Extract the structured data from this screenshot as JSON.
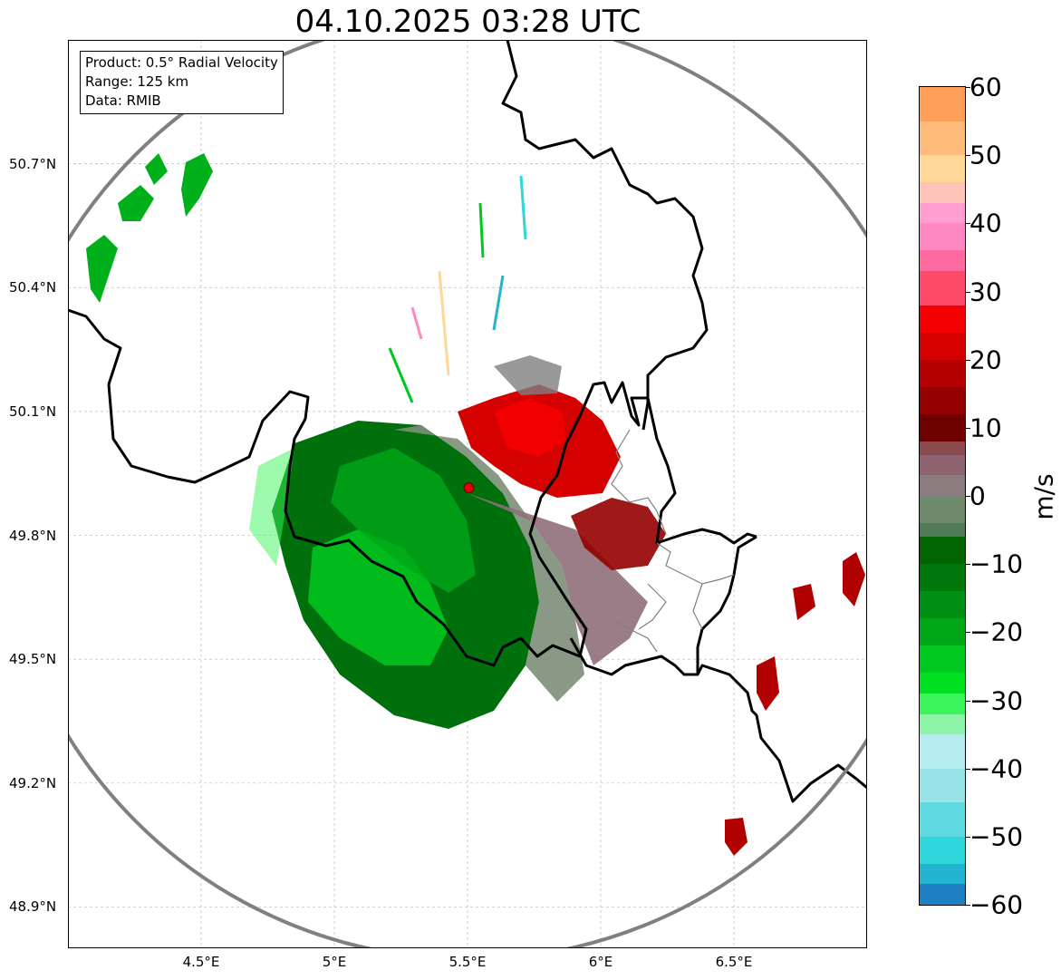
{
  "title": "04.10.2025 03:28 UTC",
  "info_box": {
    "product": "Product: 0.5° Radial Velocity",
    "range": "Range: 125 km",
    "data": "Data: RMIB"
  },
  "map": {
    "lon_min": 4.0,
    "lon_max": 7.0,
    "lat_min": 48.8,
    "lat_max": 51.0,
    "radar_site": {
      "lon": 5.505,
      "lat": 49.915
    },
    "latitude_ticks": [
      {
        "value": 50.7,
        "label": "50.7°N"
      },
      {
        "value": 50.4,
        "label": "50.4°N"
      },
      {
        "value": 50.1,
        "label": "50.1°N"
      },
      {
        "value": 49.8,
        "label": "49.8°N"
      },
      {
        "value": 49.5,
        "label": "49.5°N"
      },
      {
        "value": 49.2,
        "label": "49.2°N"
      },
      {
        "value": 48.9,
        "label": "48.9°N"
      }
    ],
    "longitude_ticks": [
      {
        "value": 4.5,
        "label": "4.5°E"
      },
      {
        "value": 5.0,
        "label": "5°E"
      },
      {
        "value": 5.5,
        "label": "5.5°E"
      },
      {
        "value": 6.0,
        "label": "6°E"
      },
      {
        "value": 6.5,
        "label": "6.5°E"
      }
    ],
    "colors": {
      "range_ring": "#808080",
      "border": "#000000",
      "grid": "#bbbbbb",
      "radar_marker": "#e00000"
    }
  },
  "colorbar": {
    "unit": "m/s",
    "min": -60,
    "max": 60,
    "ticks": [
      {
        "value": 60,
        "label": "60"
      },
      {
        "value": 50,
        "label": "50"
      },
      {
        "value": 40,
        "label": "40"
      },
      {
        "value": 30,
        "label": "30"
      },
      {
        "value": 20,
        "label": "20"
      },
      {
        "value": 10,
        "label": "10"
      },
      {
        "value": 0,
        "label": "0"
      },
      {
        "value": -10,
        "label": "−10"
      },
      {
        "value": -20,
        "label": "−20"
      },
      {
        "value": -30,
        "label": "−30"
      },
      {
        "value": -40,
        "label": "−40"
      },
      {
        "value": -50,
        "label": "−50"
      },
      {
        "value": -60,
        "label": "−60"
      }
    ],
    "segments": [
      {
        "from": 55,
        "to": 60,
        "color": "#ff9f5a"
      },
      {
        "from": 50,
        "to": 55,
        "color": "#ffbb7a"
      },
      {
        "from": 46,
        "to": 50,
        "color": "#ffd796"
      },
      {
        "from": 43,
        "to": 46,
        "color": "#ffc3b8"
      },
      {
        "from": 40,
        "to": 43,
        "color": "#ff9fcf"
      },
      {
        "from": 36,
        "to": 40,
        "color": "#ff88c2"
      },
      {
        "from": 33,
        "to": 36,
        "color": "#ff6aa0"
      },
      {
        "from": 28,
        "to": 33,
        "color": "#ff4b6a"
      },
      {
        "from": 24,
        "to": 28,
        "color": "#f40000"
      },
      {
        "from": 20,
        "to": 24,
        "color": "#d50000"
      },
      {
        "from": 16,
        "to": 20,
        "color": "#b40000"
      },
      {
        "from": 12,
        "to": 16,
        "color": "#950000"
      },
      {
        "from": 8,
        "to": 12,
        "color": "#6f0000"
      },
      {
        "from": 6,
        "to": 8,
        "color": "#8a4a4e"
      },
      {
        "from": 3,
        "to": 6,
        "color": "#8f6470"
      },
      {
        "from": 0,
        "to": 3,
        "color": "#8b7c80"
      },
      {
        "from": -4,
        "to": 0,
        "color": "#6f8a6c"
      },
      {
        "from": -6,
        "to": -4,
        "color": "#4f7a55"
      },
      {
        "from": -10,
        "to": -6,
        "color": "#006400"
      },
      {
        "from": -14,
        "to": -10,
        "color": "#00770a"
      },
      {
        "from": -18,
        "to": -14,
        "color": "#008f12"
      },
      {
        "from": -22,
        "to": -18,
        "color": "#00a818"
      },
      {
        "from": -26,
        "to": -22,
        "color": "#00c81e"
      },
      {
        "from": -29,
        "to": -26,
        "color": "#00e020"
      },
      {
        "from": -32,
        "to": -29,
        "color": "#3cf55a"
      },
      {
        "from": -35,
        "to": -32,
        "color": "#8cf5a8"
      },
      {
        "from": -40,
        "to": -35,
        "color": "#b5ecf0"
      },
      {
        "from": -45,
        "to": -40,
        "color": "#96e3e8"
      },
      {
        "from": -50,
        "to": -45,
        "color": "#5ed9e0"
      },
      {
        "from": -54,
        "to": -50,
        "color": "#2fd6dc"
      },
      {
        "from": -57,
        "to": -54,
        "color": "#22b4d0"
      },
      {
        "from": -60,
        "to": -57,
        "color": "#1f7fc4"
      }
    ]
  }
}
